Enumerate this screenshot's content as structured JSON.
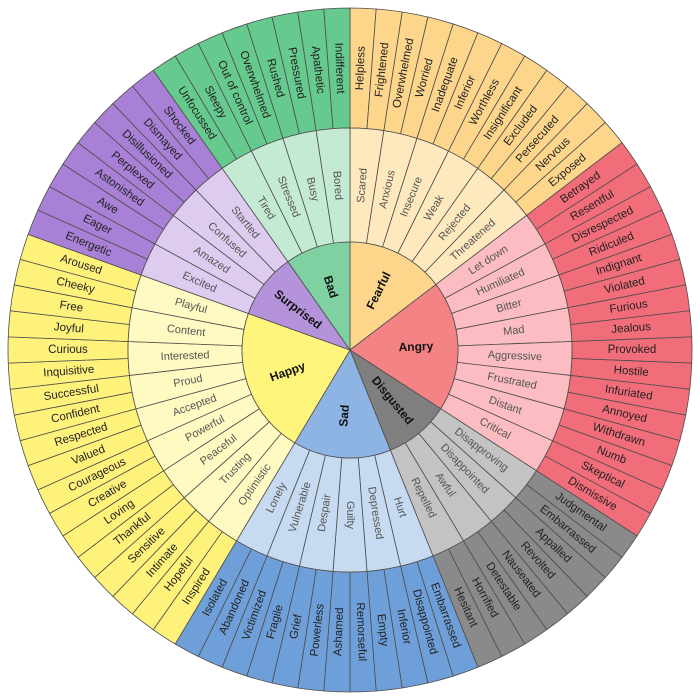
{
  "emotions": [
    {
      "label": "Fearful",
      "color": [
        "#fdd68c",
        "#fde9bd",
        "#fdd68c"
      ],
      "children": [
        {
          "label": "Scared",
          "children": [
            "Helpless",
            "Frightened"
          ]
        },
        {
          "label": "Anxious",
          "children": [
            "Overwhelmed",
            "Worried"
          ]
        },
        {
          "label": "Insecure",
          "children": [
            "Inadequate",
            "Inferior"
          ]
        },
        {
          "label": "Weak",
          "children": [
            "Worthless",
            "Insignificant"
          ]
        },
        {
          "label": "Rejected",
          "children": [
            "Excluded",
            "Persecuted"
          ]
        },
        {
          "label": "Threatened",
          "children": [
            "Nervous",
            "Exposed"
          ]
        }
      ]
    },
    {
      "label": "Angry",
      "color": [
        "#f48386",
        "#fbbcc2",
        "#f26d7a"
      ],
      "children": [
        {
          "label": "Let down",
          "children": [
            "Betrayed",
            "Resentful"
          ]
        },
        {
          "label": "Humiliated",
          "children": [
            "Disrespected",
            "Ridiculed"
          ]
        },
        {
          "label": "Bitter",
          "children": [
            "Indignant",
            "Violated"
          ]
        },
        {
          "label": "Mad",
          "children": [
            "Furious",
            "Jealous"
          ]
        },
        {
          "label": "Aggressive",
          "children": [
            "Provoked",
            "Hostile"
          ]
        },
        {
          "label": "Frustrated",
          "children": [
            "Infuriated",
            "Annoyed"
          ]
        },
        {
          "label": "Distant",
          "children": [
            "Withdrawn",
            "Numb"
          ]
        },
        {
          "label": "Critical",
          "children": [
            "Skeptical",
            "Dismissive"
          ]
        }
      ]
    },
    {
      "label": "Disgusted",
      "color": [
        "#7f7f7f",
        "#c3c3c3",
        "#8a8a8a"
      ],
      "children": [
        {
          "label": "Disapproving",
          "children": [
            "Judgmental",
            "Embarrassed"
          ]
        },
        {
          "label": "Disappointed",
          "children": [
            "Appalled",
            "Revolted"
          ]
        },
        {
          "label": "Awful",
          "children": [
            "Nauseated",
            "Detestable"
          ]
        },
        {
          "label": "Repelled",
          "children": [
            "Horrified",
            "Hesitant"
          ]
        }
      ]
    },
    {
      "label": "Sad",
      "color": [
        "#8db4e2",
        "#c6daf1",
        "#6f9fd8"
      ],
      "children": [
        {
          "label": "Hurt",
          "children": [
            "Embarrassed",
            "Disappointed"
          ]
        },
        {
          "label": "Depressed",
          "children": [
            "Inferior",
            "Empty"
          ]
        },
        {
          "label": "Guilty",
          "children": [
            "Remorseful",
            "Ashamed"
          ]
        },
        {
          "label": "Despair",
          "children": [
            "Powerless",
            "Grief"
          ]
        },
        {
          "label": "Vulnerable",
          "children": [
            "Fragile",
            "Victimized"
          ]
        },
        {
          "label": "Lonely",
          "children": [
            "Abandoned",
            "Isolated"
          ]
        }
      ]
    },
    {
      "label": "Happy",
      "color": [
        "#fff47c",
        "#fffac2",
        "#fff27a"
      ],
      "children": [
        {
          "label": "Optimistic",
          "children": [
            "Inspired",
            "Hopeful"
          ]
        },
        {
          "label": "Trusting",
          "children": [
            "Intimate",
            "Sensitive"
          ]
        },
        {
          "label": "Peaceful",
          "children": [
            "Thankful",
            "Loving"
          ]
        },
        {
          "label": "Powerful",
          "children": [
            "Creative",
            "Courageous"
          ]
        },
        {
          "label": "Accepted",
          "children": [
            "Valued",
            "Respected"
          ]
        },
        {
          "label": "Proud",
          "children": [
            "Confident",
            "Successful"
          ]
        },
        {
          "label": "Interested",
          "children": [
            "Inquisitive",
            "Curious"
          ]
        },
        {
          "label": "Content",
          "children": [
            "Joyful",
            "Free"
          ]
        },
        {
          "label": "Playful",
          "children": [
            "Cheeky",
            "Aroused"
          ]
        }
      ]
    },
    {
      "label": "Surprised",
      "color": [
        "#b593da",
        "#ddccef",
        "#a880d6"
      ],
      "children": [
        {
          "label": "Excited",
          "children": [
            "Energetic",
            "Eager"
          ]
        },
        {
          "label": "Amazed",
          "children": [
            "Awe",
            "Astonished"
          ]
        },
        {
          "label": "Confused",
          "children": [
            "Perplexed",
            "Disillusioned"
          ]
        },
        {
          "label": "Startled",
          "children": [
            "Dismayed",
            "Shocked"
          ]
        }
      ]
    },
    {
      "label": "Bad",
      "color": [
        "#80d1a1",
        "#c5ead4",
        "#66c98e"
      ],
      "children": [
        {
          "label": "Tired",
          "children": [
            "Unfocussed",
            "Sleepy"
          ]
        },
        {
          "label": "Stressed",
          "children": [
            "Out of control",
            "Overwhelmed"
          ]
        },
        {
          "label": "Busy",
          "children": [
            "Rushed",
            "Pressured"
          ]
        },
        {
          "label": "Bored",
          "children": [
            "Apathetic",
            "Indifferent"
          ]
        }
      ]
    }
  ]
}
